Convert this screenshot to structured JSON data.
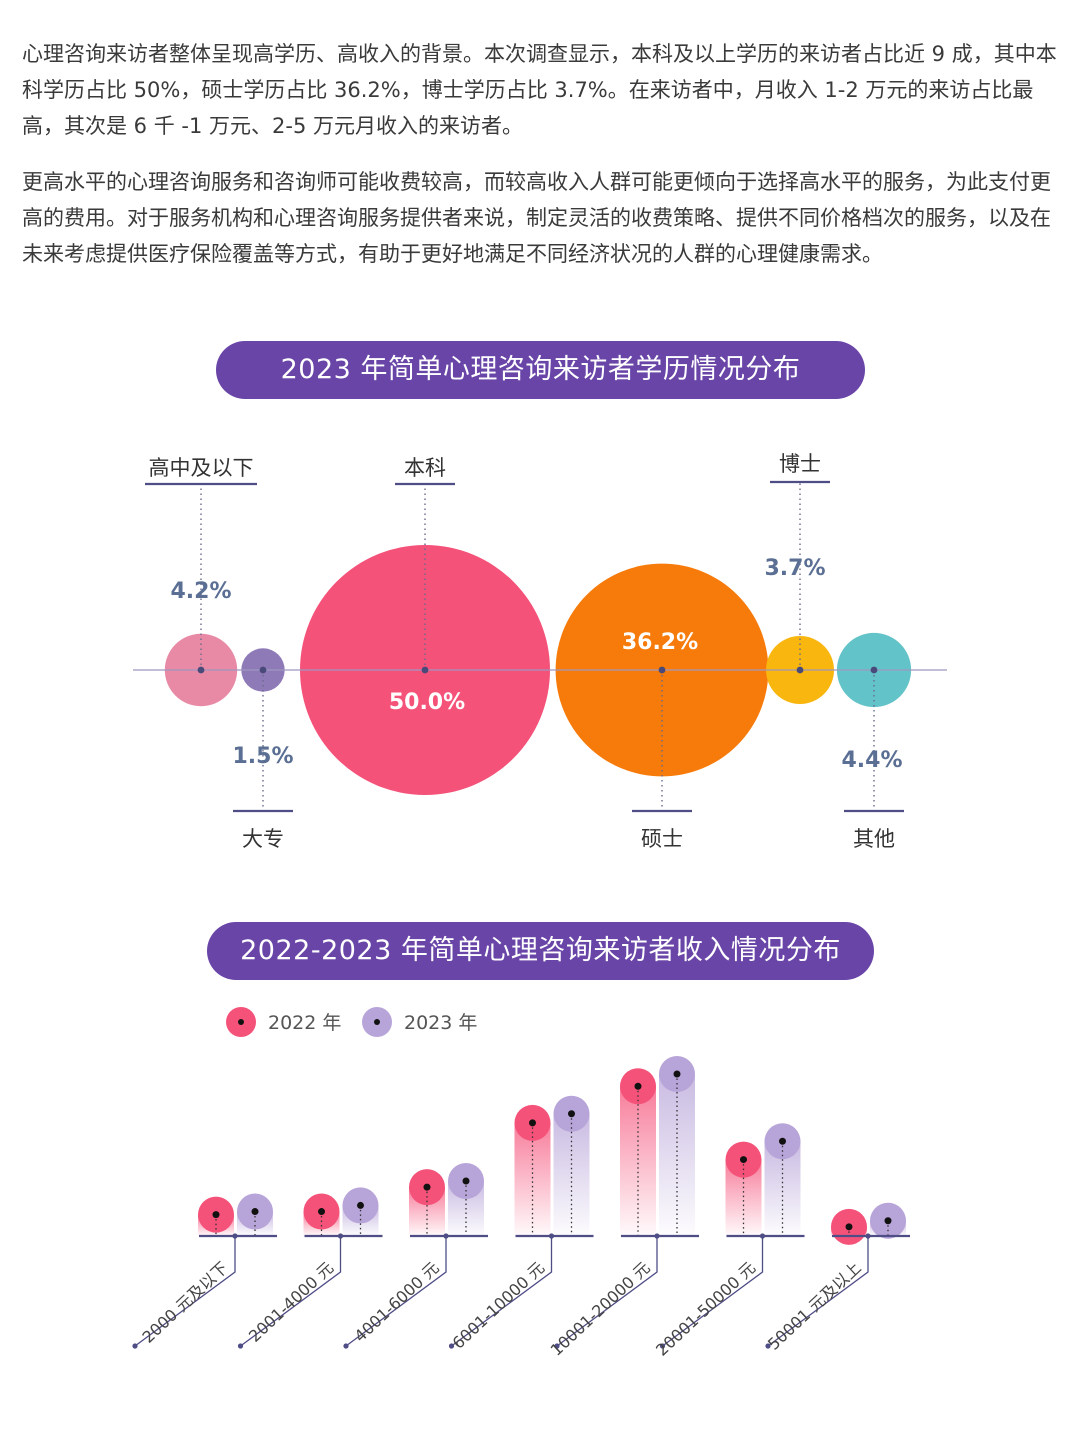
{
  "text": {
    "p1": "心理咨询来访者整体呈现高学历、高收入的背景。本次调查显示，本科及以上学历的来访者占比近 9 成，其中本科学历占比 50%，硕士学历占比 36.2%，博士学历占比 3.7%。在来访者中，月收入 1-2 万元的来访占比最高，其次是 6 千 -1 万元、2-5 万元月收入的来访者。",
    "p2": "更高水平的心理咨询服务和咨询师可能收费较高，而较高收入人群可能更倾向于选择高水平的服务，为此支付更高的费用。对于服务机构和心理咨询服务提供者来说，制定灵活的收费策略、提供不同价格档次的服务，以及在未来考虑提供医疗保险覆盖等方式，有助于更好地满足不同经济状况的人群的心理健康需求。"
  },
  "chart_data": [
    {
      "type": "bubble",
      "title": "2023 年简单心理咨询来访者学历情况分布",
      "categories": [
        "高中及以下",
        "大专",
        "本科",
        "硕士",
        "博士",
        "其他"
      ],
      "values": [
        4.2,
        1.5,
        50.0,
        36.2,
        3.7,
        4.4
      ],
      "labels": [
        "4.2%",
        "1.5%",
        "50.0%",
        "36.2%",
        "3.7%",
        "4.4%"
      ],
      "colors": [
        "#e88aa6",
        "#8f7ab8",
        "#f5527a",
        "#f77b0a",
        "#f8b60e",
        "#62c3c8"
      ]
    },
    {
      "type": "lollipop",
      "title": "2022-2023 年简单心理咨询来访者收入情况分布",
      "categories": [
        "2000 元及以下",
        "2001-4000 元",
        "4001-6000 元",
        "6001-10000 元",
        "10001-20000 元",
        "20001-50000 元",
        "50001 元及以上"
      ],
      "series": [
        {
          "name": "2022 年",
          "color": "#f5527a",
          "values": [
            3.5,
            4.0,
            8.0,
            18.5,
            24.5,
            12.5,
            1.5
          ]
        },
        {
          "name": "2023 年",
          "color": "#b7a4d8",
          "values": [
            4.0,
            5.0,
            9.0,
            20.0,
            26.5,
            15.5,
            2.5
          ]
        }
      ],
      "legend_position": "top-left"
    }
  ]
}
